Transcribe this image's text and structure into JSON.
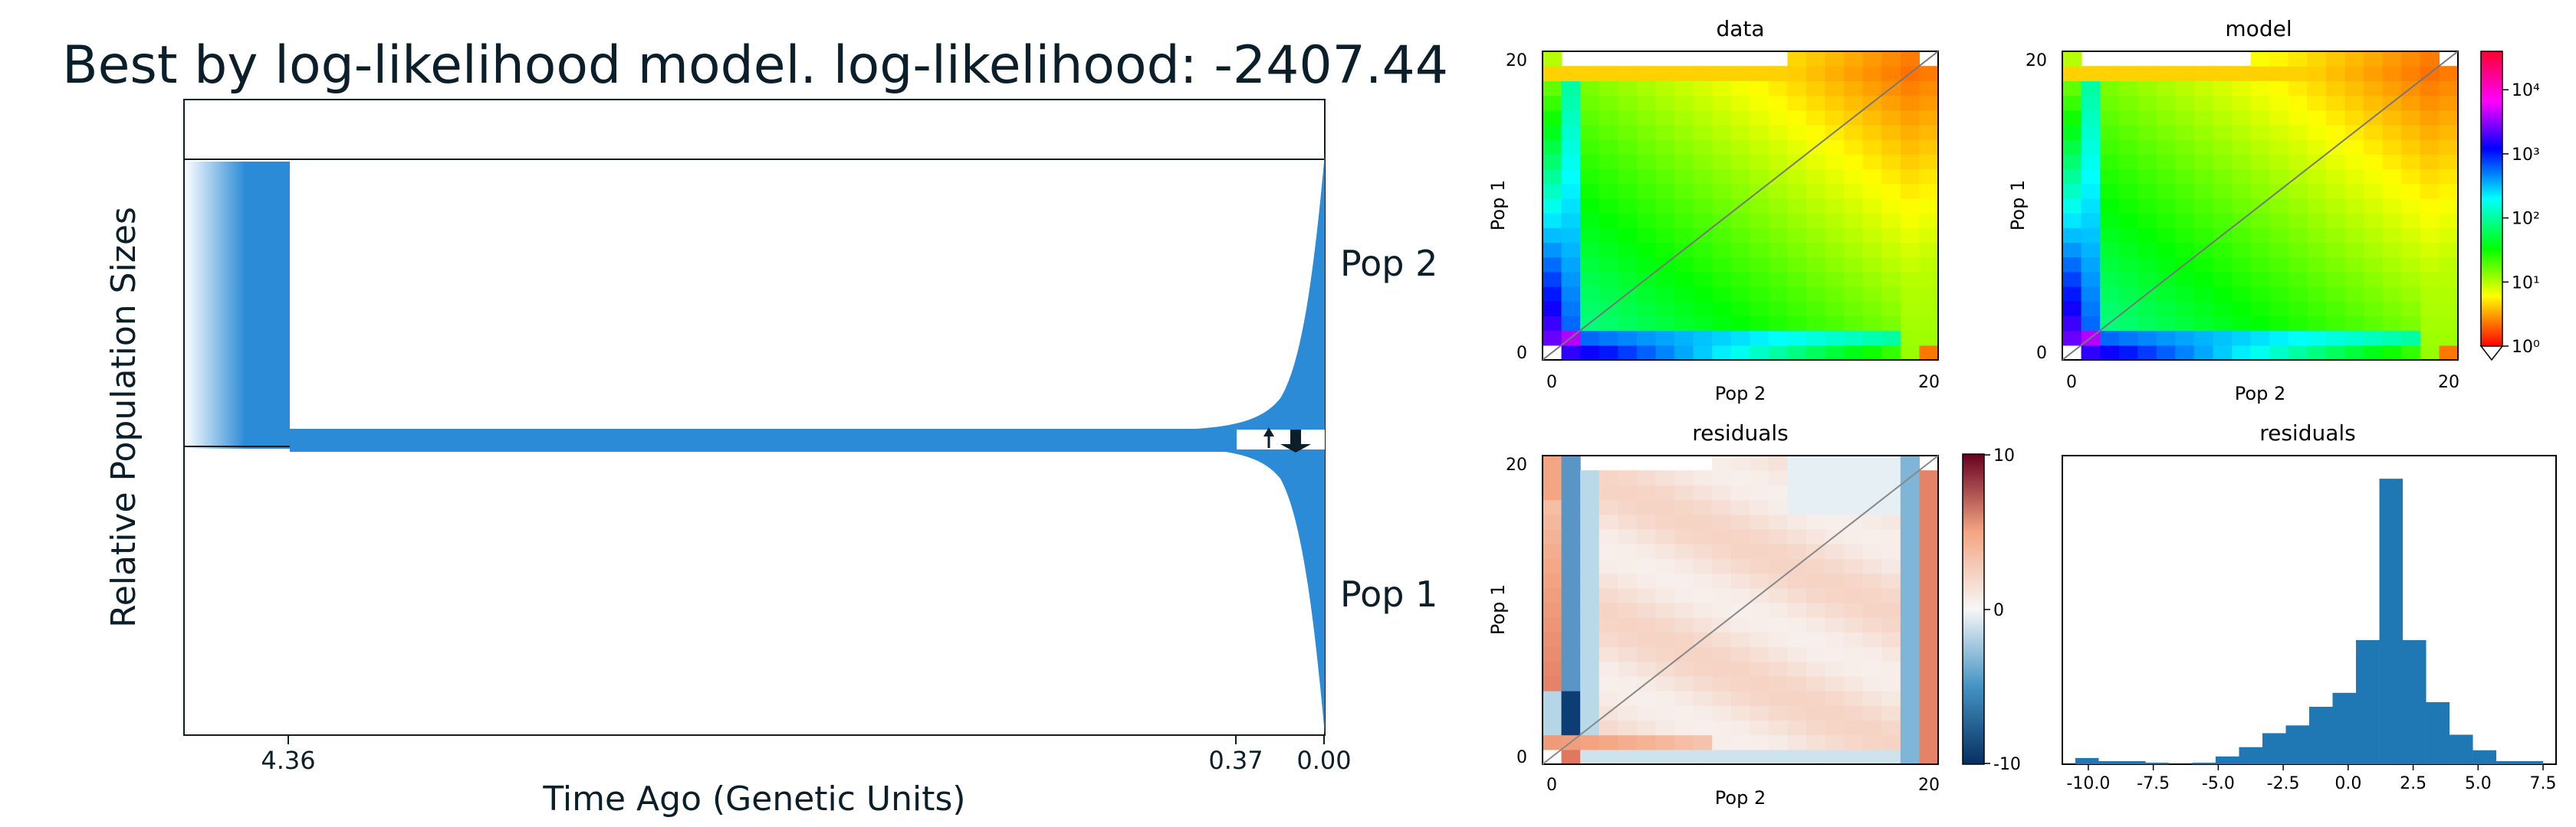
{
  "chart_data": [
    {
      "type": "area",
      "title": "Best by log-likelihood model. log-likelihood: -2407.44",
      "xlabel": "Time Ago (Genetic Units)",
      "ylabel": "Relative Population Sizes",
      "xticks": [
        "4.36",
        "0.37",
        "0.00"
      ],
      "series": [
        {
          "name": "Pop 2"
        },
        {
          "name": "Pop 1"
        }
      ],
      "fill_color": "#2b8bd6"
    },
    {
      "type": "heatmap",
      "title": "data",
      "xlabel": "Pop 2",
      "ylabel": "Pop 1",
      "xticks": [
        "0",
        "20"
      ],
      "yticks": [
        "0",
        "20"
      ],
      "scale": "log",
      "colormap": "hsv"
    },
    {
      "type": "heatmap",
      "title": "model",
      "xlabel": "Pop 2",
      "ylabel": "Pop 1",
      "xticks": [
        "0",
        "20"
      ],
      "yticks": [
        "0",
        "20"
      ],
      "scale": "log",
      "colorbar_ticks": [
        "10⁰",
        "10¹",
        "10²",
        "10³",
        "10⁴"
      ],
      "colormap": "hsv"
    },
    {
      "type": "heatmap",
      "title": "residuals",
      "xlabel": "Pop 2",
      "ylabel": "Pop 1",
      "xticks": [
        "0",
        "20"
      ],
      "yticks": [
        "0",
        "20"
      ],
      "colorbar_ticks": [
        "10",
        "0",
        "-10"
      ],
      "colormap": "RdBu_r",
      "vlim": [
        -10,
        10
      ]
    },
    {
      "type": "bar",
      "title": "residuals",
      "xticks": [
        "-10.0",
        "-7.5",
        "-5.0",
        "-2.5",
        "0.0",
        "2.5",
        "5.0",
        "7.5"
      ],
      "xlim": [
        -11,
        8
      ],
      "bins": [
        -10.5,
        -9.6,
        -8.7,
        -7.8,
        -6.9,
        -6.0,
        -5.1,
        -4.2,
        -3.3,
        -2.4,
        -1.5,
        -0.6,
        0.3,
        1.2,
        2.1,
        3.0,
        3.9,
        4.8,
        5.7,
        6.6,
        7.5
      ],
      "values": [
        4,
        2,
        2,
        1,
        0,
        1,
        5,
        11,
        20,
        25,
        37,
        46,
        80,
        184,
        80,
        40,
        19,
        9,
        2,
        2,
        4
      ],
      "ymax": 190,
      "color": "#1f77b4"
    }
  ]
}
